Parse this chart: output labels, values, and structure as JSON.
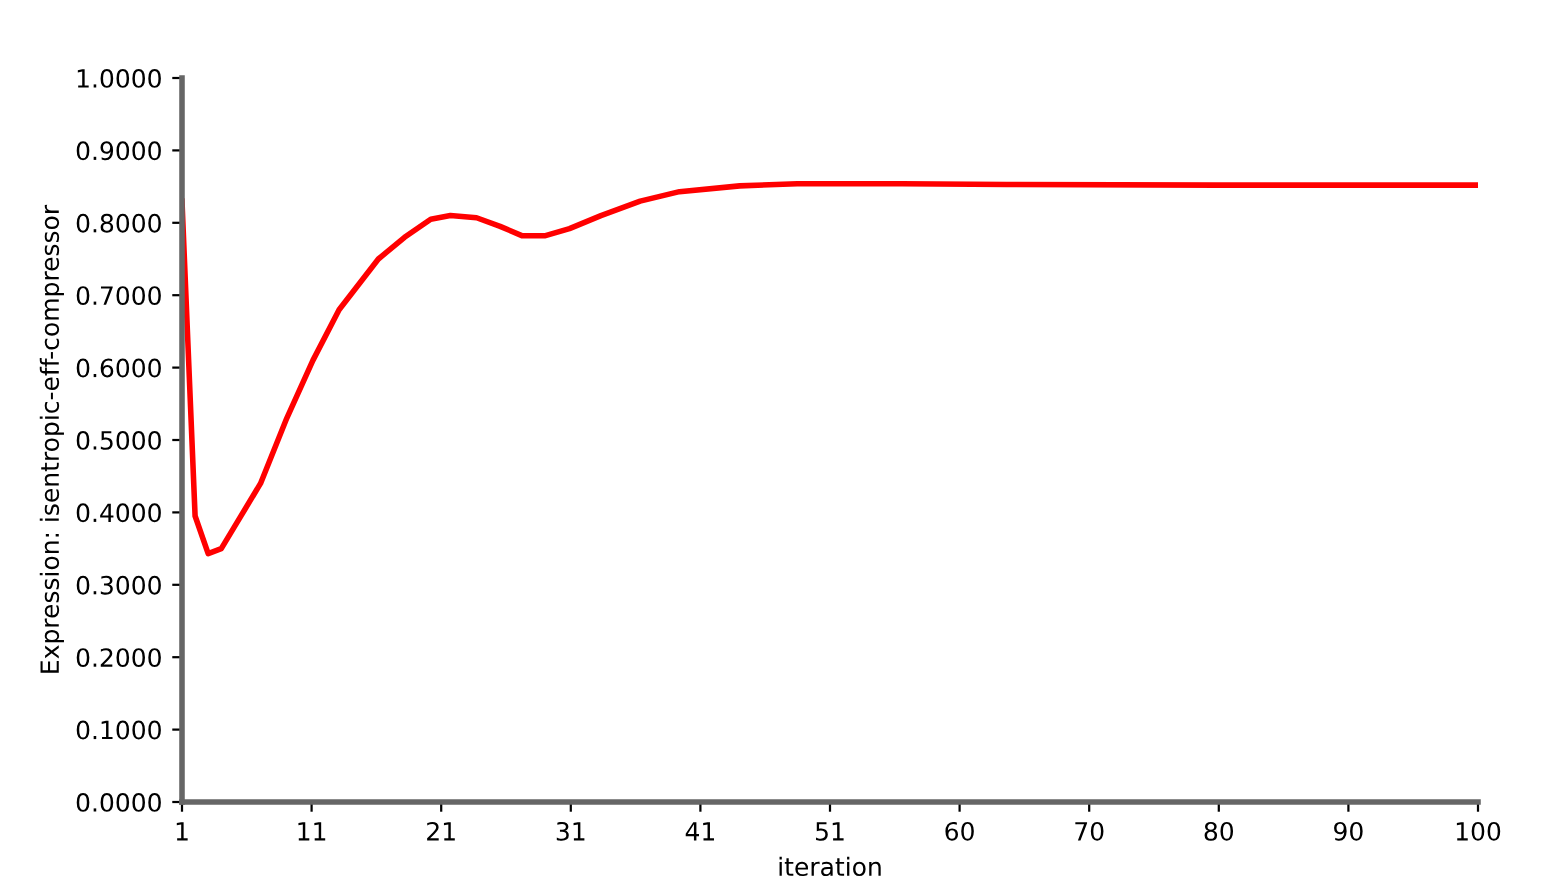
{
  "chart_data": {
    "type": "line",
    "xlabel": "iteration",
    "ylabel": "Expression: isentropic-eff-compressor",
    "x": [
      1,
      2,
      3,
      4,
      5,
      7,
      9,
      11,
      13,
      16,
      18,
      20,
      21.5,
      23.5,
      25.3,
      27,
      28.7,
      30.6,
      33,
      36,
      39,
      43.6,
      48,
      56,
      64,
      80,
      100
    ],
    "series": [
      {
        "color": "#ff0000",
        "values": [
          0.83,
          0.395,
          0.343,
          0.35,
          0.38,
          0.44,
          0.53,
          0.61,
          0.68,
          0.75,
          0.78,
          0.805,
          0.81,
          0.807,
          0.795,
          0.782,
          0.782,
          0.792,
          0.81,
          0.83,
          0.843,
          0.851,
          0.854,
          0.854,
          0.853,
          0.852,
          0.852
        ]
      }
    ],
    "xlim": [
      1,
      100
    ],
    "ylim": [
      0,
      1
    ],
    "xticks": [
      1,
      {
        "value": 10.9,
        "label": "11"
      },
      {
        "value": 20.8,
        "label": "21"
      },
      {
        "value": 30.7,
        "label": "31"
      },
      {
        "value": 40.6,
        "label": "41"
      },
      {
        "value": 50.5,
        "label": "51"
      },
      {
        "value": 60.4,
        "label": "60"
      },
      {
        "value": 70.3,
        "label": "70"
      },
      {
        "value": 80.2,
        "label": "80"
      },
      {
        "value": 90.1,
        "label": "90"
      },
      100
    ],
    "yticks": [
      {
        "value": 0,
        "label": "0.0000"
      },
      {
        "value": 0.1,
        "label": "0.1000"
      },
      {
        "value": 0.2,
        "label": "0.2000"
      },
      {
        "value": 0.3,
        "label": "0.3000"
      },
      {
        "value": 0.4,
        "label": "0.4000"
      },
      {
        "value": 0.5,
        "label": "0.5000"
      },
      {
        "value": 0.6,
        "label": "0.6000"
      },
      {
        "value": 0.7,
        "label": "0.7000"
      },
      {
        "value": 0.8,
        "label": "0.8000"
      },
      {
        "value": 0.9,
        "label": "0.9000"
      },
      {
        "value": 1,
        "label": "1.0000"
      }
    ],
    "grid": false,
    "marker": "none",
    "line_style": "solid"
  }
}
